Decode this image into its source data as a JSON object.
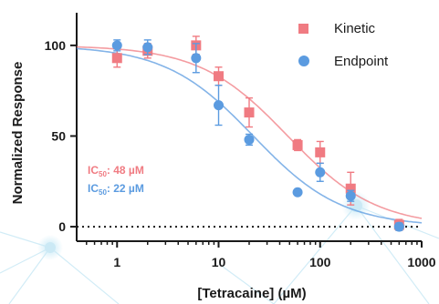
{
  "chart_data": {
    "type": "scatter",
    "xlabel": "[Tetracaine] (µM)",
    "ylabel": "Normalized Response",
    "xscale": "log",
    "xlim": [
      0.4,
      1000
    ],
    "ylim": [
      -8,
      118
    ],
    "x_ticks": [
      1,
      10,
      100,
      1000
    ],
    "x_tick_labels": [
      "1",
      "10",
      "100",
      "1000"
    ],
    "y_ticks": [
      0,
      50,
      100
    ],
    "y_tick_labels": [
      "0",
      "50",
      "100"
    ],
    "baseline": 0,
    "grid": false,
    "legend_position": "top-right",
    "series": [
      {
        "name": "Kinetic",
        "color": "#f07b82",
        "marker": "square",
        "x": [
          1,
          2,
          6,
          10,
          20,
          60,
          100,
          200,
          600
        ],
        "y": [
          93,
          97,
          100,
          83,
          63,
          45,
          41,
          21,
          1
        ],
        "err": [
          5,
          4,
          5,
          5,
          8,
          3,
          6,
          9,
          3
        ],
        "ic50": 48,
        "hill": 1
      },
      {
        "name": "Endpoint",
        "color": "#5b9be0",
        "marker": "circle",
        "x": [
          1,
          2,
          6,
          10,
          20,
          60,
          100,
          200,
          600
        ],
        "y": [
          100,
          99,
          93,
          67,
          48,
          19,
          30,
          17,
          0
        ],
        "err": [
          3,
          4,
          8,
          11,
          3,
          0,
          5,
          3,
          2
        ],
        "ic50": 22,
        "hill": 1
      }
    ],
    "annotations": [
      {
        "label": "IC",
        "sub": "50",
        "value": ": 48 µM",
        "color": "#f07b82"
      },
      {
        "label": "IC",
        "sub": "50",
        "value": ": 22 µM",
        "color": "#5b9be0"
      }
    ]
  }
}
